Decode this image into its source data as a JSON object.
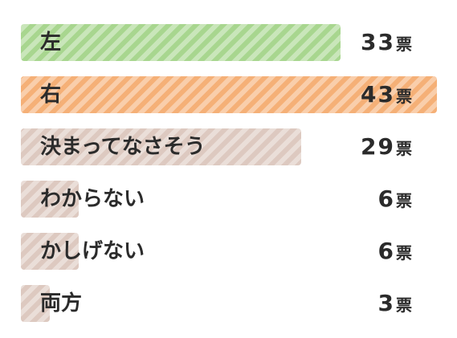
{
  "chart_data": {
    "type": "bar",
    "orientation": "horizontal",
    "categories": [
      "左",
      "右",
      "決まってなさそう",
      "わからない",
      "かしげない",
      "両方"
    ],
    "values": [
      33,
      43,
      29,
      6,
      6,
      3
    ],
    "unit": "票",
    "value_labels": [
      "33",
      "43",
      "29",
      "6",
      "6",
      "3"
    ],
    "xlim": [
      0,
      43
    ],
    "colors": [
      "#a8d68f",
      "#f5b077",
      "#ddc9c0",
      "#ddc9c0",
      "#ddc9c0",
      "#ddc9c0"
    ],
    "bar_pattern": "diagonal-stripes",
    "grid": false,
    "legend": "none"
  }
}
